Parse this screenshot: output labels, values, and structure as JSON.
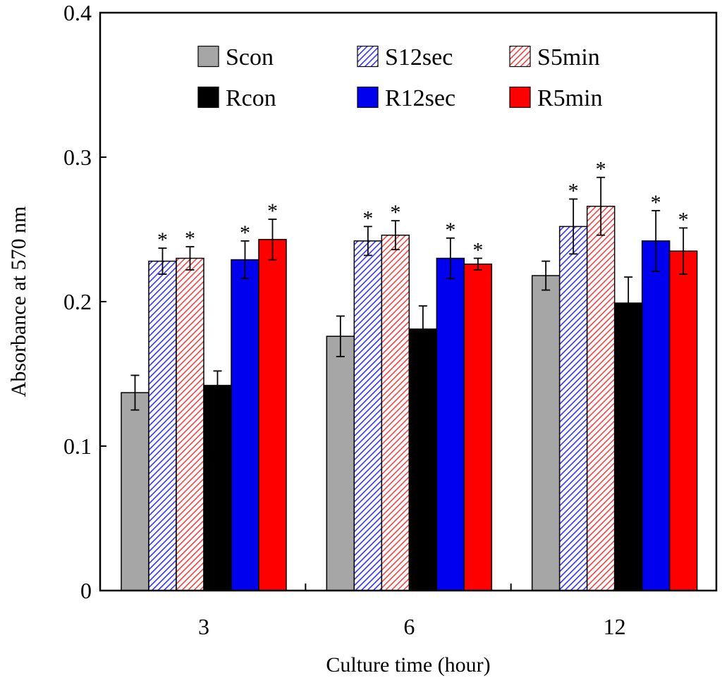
{
  "chart_data": {
    "type": "bar",
    "title": "",
    "xlabel": "Culture time (hour)",
    "ylabel": "Absorbance  at 570 nm",
    "ylim": [
      0,
      0.4
    ],
    "yticks": [
      "0",
      "0.1",
      "0.2",
      "0.3",
      "0.4"
    ],
    "categories": [
      "3",
      "6",
      "12"
    ],
    "legend_position": "top",
    "grid": false,
    "significance_marker": "*",
    "series": [
      {
        "name": "Scon",
        "color": "#a6a6a6",
        "pattern": "solid",
        "values": [
          0.137,
          0.176,
          0.218
        ],
        "errors": [
          0.012,
          0.014,
          0.01
        ],
        "significant": [
          false,
          false,
          false
        ]
      },
      {
        "name": "S12sec",
        "color": "#3333ff",
        "pattern": "hatch",
        "values": [
          0.228,
          0.242,
          0.252
        ],
        "errors": [
          0.009,
          0.01,
          0.019
        ],
        "significant": [
          true,
          true,
          true
        ]
      },
      {
        "name": "S5min",
        "color": "#ee4444",
        "pattern": "hatch",
        "values": [
          0.23,
          0.246,
          0.266
        ],
        "errors": [
          0.008,
          0.01,
          0.02
        ],
        "significant": [
          true,
          true,
          true
        ]
      },
      {
        "name": "Rcon",
        "color": "#000000",
        "pattern": "solid",
        "values": [
          0.142,
          0.181,
          0.199
        ],
        "errors": [
          0.01,
          0.016,
          0.018
        ],
        "significant": [
          false,
          false,
          false
        ]
      },
      {
        "name": "R12sec",
        "color": "#0000ee",
        "pattern": "solid",
        "values": [
          0.229,
          0.23,
          0.242
        ],
        "errors": [
          0.013,
          0.014,
          0.021
        ],
        "significant": [
          true,
          true,
          true
        ]
      },
      {
        "name": "R5min",
        "color": "#ff0000",
        "pattern": "solid",
        "values": [
          0.243,
          0.226,
          0.235
        ],
        "errors": [
          0.014,
          0.004,
          0.016
        ],
        "significant": [
          true,
          true,
          true
        ]
      }
    ]
  }
}
